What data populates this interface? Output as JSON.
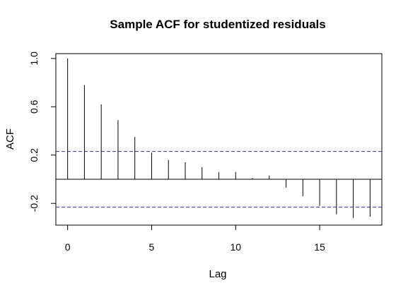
{
  "chart_data": {
    "type": "bar",
    "title": "Sample ACF for studentized residuals",
    "xlabel": "Lag",
    "ylabel": "ACF",
    "xlim": [
      -0.7,
      18.7
    ],
    "ylim": [
      -0.38,
      1.04
    ],
    "x_ticks": [
      0,
      5,
      10,
      15
    ],
    "y_ticks": [
      -0.2,
      0.2,
      0.6,
      1.0
    ],
    "x_tick_labels": [
      "0",
      "5",
      "10",
      "15"
    ],
    "y_tick_labels": [
      "-0.2",
      "0.2",
      "0.6",
      "1.0"
    ],
    "confidence_bound": 0.23,
    "grid": false,
    "colors": {
      "bars": "#000000",
      "bounds": "#3333aa",
      "zero_line": "#000000"
    },
    "lags": [
      0,
      1,
      2,
      3,
      4,
      5,
      6,
      7,
      8,
      9,
      10,
      11,
      12,
      13,
      14,
      15,
      16,
      17,
      18
    ],
    "values": [
      1.0,
      0.78,
      0.62,
      0.49,
      0.35,
      0.22,
      0.16,
      0.14,
      0.1,
      0.06,
      0.06,
      0.01,
      0.03,
      -0.07,
      -0.14,
      -0.22,
      -0.29,
      -0.32,
      -0.31
    ]
  }
}
